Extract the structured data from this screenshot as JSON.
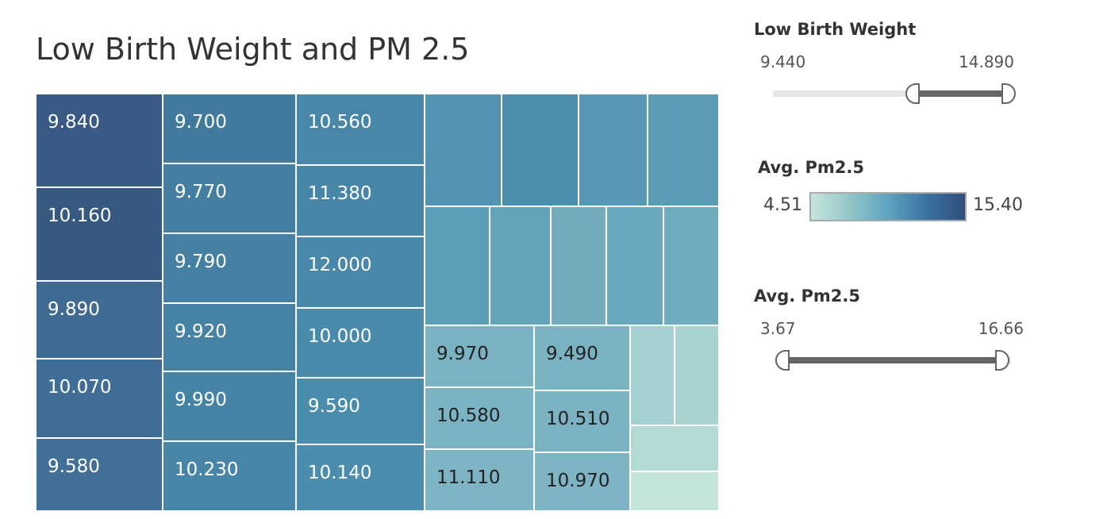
{
  "title": "Low Birth Weight and PM 2.5",
  "filters": {
    "low_birth_weight": {
      "title": "Low Birth Weight",
      "min_label": "9.440",
      "max_label": "14.890",
      "range_min": 9.44,
      "range_max": 14.89,
      "selected_min": 12.95,
      "selected_max": 14.89
    },
    "pm25_slider": {
      "title": "Avg. Pm2.5",
      "min_label": "3.67",
      "max_label": "16.66",
      "range_min": 3.67,
      "range_max": 16.66,
      "selected_min": 4.5,
      "selected_max": 15.8
    }
  },
  "legend": {
    "title": "Avg. Pm2.5",
    "min_label": "4.51",
    "max_label": "15.40"
  },
  "colors": {
    "dark": "#2f4f7c",
    "mid": "#4a8aad",
    "light": "#c6e6dd",
    "label_light": "#ffffff",
    "label_dark": "#222222"
  },
  "chart_data": {
    "type": "treemap",
    "size_field": "",
    "color_field": "Avg. Pm2.5",
    "label_field": "Low Birth Weight",
    "cells": [
      {
        "label": "9.840",
        "color": "#385a84"
      },
      {
        "label": "10.160",
        "color": "#37587f"
      },
      {
        "label": "9.890",
        "color": "#3f6b93"
      },
      {
        "label": "10.070",
        "color": "#406d96"
      },
      {
        "label": "9.580",
        "color": "#426f98"
      },
      {
        "label": "9.700",
        "color": "#427a9e"
      },
      {
        "label": "9.770",
        "color": "#447ea1"
      },
      {
        "label": "9.790",
        "color": "#4580a2"
      },
      {
        "label": "9.920",
        "color": "#4582a4"
      },
      {
        "label": "9.990",
        "color": "#4684a5"
      },
      {
        "label": "10.230",
        "color": "#4784a6"
      },
      {
        "label": "10.560",
        "color": "#4887a8"
      },
      {
        "label": "11.380",
        "color": "#4886a8"
      },
      {
        "label": "12.000",
        "color": "#4988a9"
      },
      {
        "label": "10.000",
        "color": "#4a8aab"
      },
      {
        "label": "9.590",
        "color": "#4a8cac"
      },
      {
        "label": "10.140",
        "color": "#4b8dad"
      },
      {
        "label": "",
        "color": "#5494b2"
      },
      {
        "label": "",
        "color": "#4f8fae"
      },
      {
        "label": "",
        "color": "#5898b4"
      },
      {
        "label": "",
        "color": "#5b9bb5"
      },
      {
        "label": "",
        "color": "#5d9fb9"
      },
      {
        "label": "",
        "color": "#63a4bb"
      },
      {
        "label": "",
        "color": "#74acbe"
      },
      {
        "label": "",
        "color": "#6aa8bd"
      },
      {
        "label": "",
        "color": "#72acbf"
      },
      {
        "label": "9.970",
        "color": "#7ab2c2"
      },
      {
        "label": "10.580",
        "color": "#7bb3c3"
      },
      {
        "label": "11.110",
        "color": "#7db3c3"
      },
      {
        "label": "9.490",
        "color": "#7bb2c2"
      },
      {
        "label": "10.510",
        "color": "#7cb3c3"
      },
      {
        "label": "10.970",
        "color": "#7eb4c4"
      },
      {
        "label": "",
        "color": "#a4d0cf"
      },
      {
        "label": "",
        "color": "#a8d3d0"
      },
      {
        "label": "",
        "color": "#b3dad5"
      },
      {
        "label": "",
        "color": "#c5e4da"
      }
    ]
  }
}
